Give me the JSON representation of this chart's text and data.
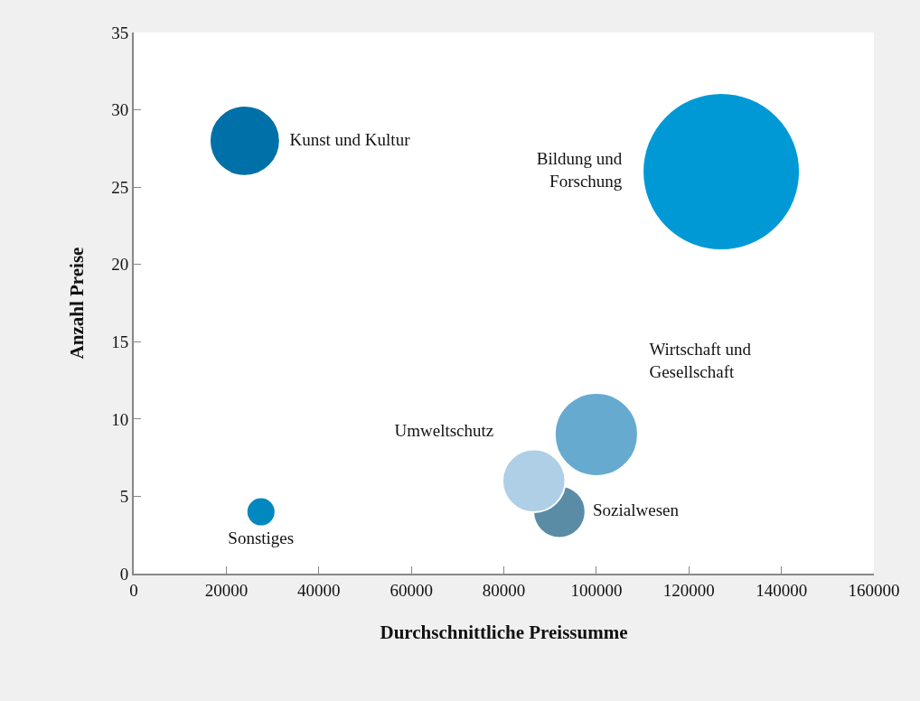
{
  "chart_data": {
    "type": "bubble",
    "xlabel": "Durchschnittliche Preissumme",
    "ylabel": "Anzahl Preise",
    "series": [
      {
        "name": "Kunst und Kultur",
        "color": "#0070a8",
        "x": [
          24000
        ],
        "values": [
          28
        ],
        "sizes": [
          0.2
        ]
      },
      {
        "name": "Bildung und Forschung",
        "color": "#0099d6",
        "x": [
          127000
        ],
        "values": [
          26
        ],
        "sizes": [
          1
        ]
      },
      {
        "name": "Wirtschaft und Gesellschaft",
        "color": "#66aad0",
        "x": [
          100000
        ],
        "values": [
          9
        ],
        "sizes": [
          0.28
        ]
      },
      {
        "name": "Sozialwesen",
        "color": "#5a8ca6",
        "x": [
          92000
        ],
        "values": [
          4
        ],
        "sizes": [
          0.11
        ]
      },
      {
        "name": "Umweltschutz",
        "color": "#aecfe6",
        "x": [
          86500
        ],
        "values": [
          6
        ],
        "sizes": [
          0.16
        ]
      },
      {
        "name": "Sonstiges",
        "color": "#0088bf",
        "x": [
          27500
        ],
        "values": [
          4
        ],
        "sizes": [
          0.034
        ]
      }
    ],
    "xlim": [
      0,
      160000
    ],
    "xticks": [
      0,
      20000,
      40000,
      60000,
      80000,
      100000,
      120000,
      140000,
      160000
    ],
    "ylim": [
      0,
      35
    ],
    "yticks": [
      0,
      5,
      10,
      15,
      20,
      25,
      30,
      35
    ],
    "legend": false
  }
}
